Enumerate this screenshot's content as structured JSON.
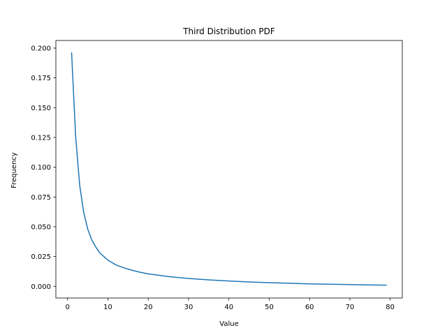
{
  "chart_data": {
    "type": "line",
    "title": "Third Distribution PDF",
    "xlabel": "Value",
    "ylabel": "Frequency",
    "xlim": [
      -2.9,
      83
    ],
    "ylim": [
      -0.0098,
      0.2064
    ],
    "xticks": [
      0,
      10,
      20,
      30,
      40,
      50,
      60,
      70,
      80
    ],
    "xtick_labels": [
      "0",
      "10",
      "20",
      "30",
      "40",
      "50",
      "60",
      "70",
      "80"
    ],
    "yticks": [
      0.0,
      0.025,
      0.05,
      0.075,
      0.1,
      0.125,
      0.15,
      0.175,
      0.2
    ],
    "ytick_labels": [
      "0.000",
      "0.025",
      "0.050",
      "0.075",
      "0.100",
      "0.125",
      "0.150",
      "0.175",
      "0.200"
    ],
    "grid": false,
    "series": [
      {
        "color": "#1f77b4",
        "x": [
          1,
          2,
          3,
          4,
          5,
          6,
          7,
          8,
          9,
          10,
          12,
          14,
          16,
          18,
          20,
          25,
          30,
          35,
          40,
          45,
          50,
          55,
          60,
          65,
          70,
          75,
          79
        ],
        "y": [
          0.196,
          0.126,
          0.085,
          0.062,
          0.048,
          0.039,
          0.033,
          0.028,
          0.025,
          0.022,
          0.018,
          0.0155,
          0.0135,
          0.0118,
          0.0105,
          0.0082,
          0.0066,
          0.0054,
          0.0045,
          0.0037,
          0.0031,
          0.0026,
          0.0021,
          0.0018,
          0.0015,
          0.0012,
          0.001
        ]
      }
    ]
  }
}
